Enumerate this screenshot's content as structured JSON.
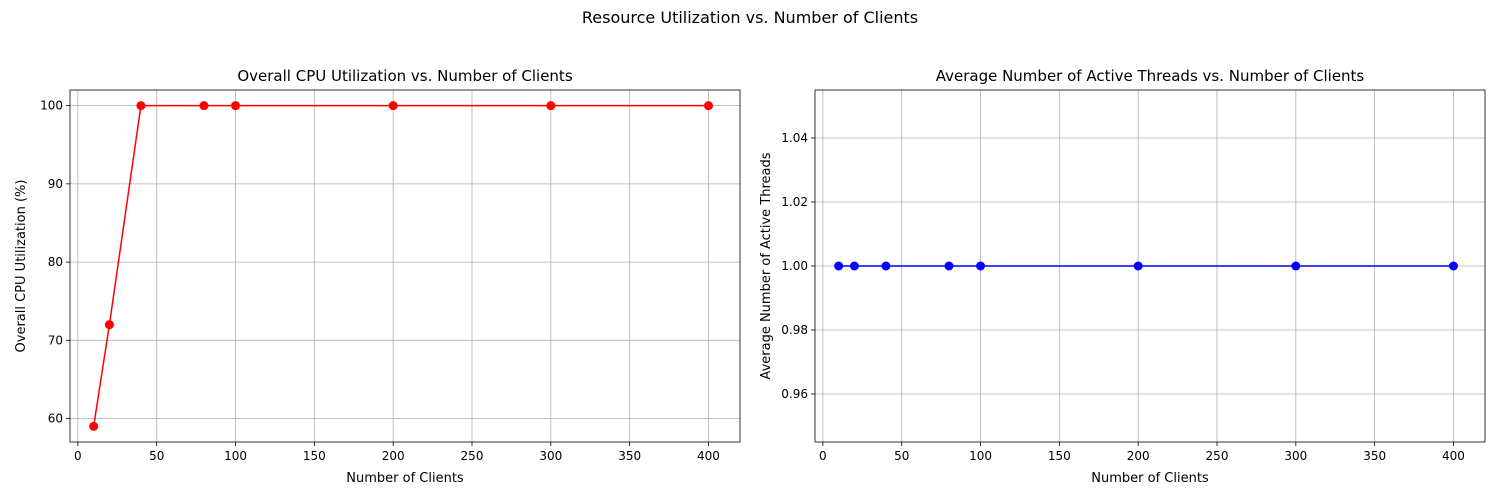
{
  "figure": {
    "title": "Resource Utilization vs. Number of Clients"
  },
  "chart_data": [
    {
      "type": "line",
      "title": "Overall CPU Utilization vs. Number of Clients",
      "xlabel": "Number of Clients",
      "ylabel": "Overall CPU Utilization (%)",
      "x": [
        10,
        20,
        40,
        80,
        100,
        200,
        300,
        400
      ],
      "series": [
        {
          "values": [
            59,
            72,
            100,
            100,
            100,
            100,
            100,
            100
          ],
          "color": "#ff0000",
          "marker": "circle"
        }
      ],
      "xlim": [
        -5,
        420
      ],
      "ylim": [
        57,
        102
      ],
      "xticks": [
        0,
        50,
        100,
        150,
        200,
        250,
        300,
        350,
        400
      ],
      "yticks": [
        60,
        70,
        80,
        90,
        100
      ],
      "ytick_labels": [
        "60",
        "70",
        "80",
        "90",
        "100"
      ],
      "grid": true
    },
    {
      "type": "line",
      "title": "Average Number of Active Threads vs. Number of Clients",
      "xlabel": "Number of Clients",
      "ylabel": "Average Number of Active Threads",
      "x": [
        10,
        20,
        40,
        80,
        100,
        200,
        300,
        400
      ],
      "series": [
        {
          "values": [
            1,
            1,
            1,
            1,
            1,
            1,
            1,
            1
          ],
          "color": "#0000ff",
          "marker": "circle"
        }
      ],
      "xlim": [
        -5,
        420
      ],
      "ylim": [
        0.945,
        1.055
      ],
      "xticks": [
        0,
        50,
        100,
        150,
        200,
        250,
        300,
        350,
        400
      ],
      "yticks": [
        0.96,
        0.98,
        1.0,
        1.02,
        1.04
      ],
      "ytick_labels": [
        "0.96",
        "0.98",
        "1.00",
        "1.02",
        "1.04"
      ],
      "grid": true
    }
  ]
}
